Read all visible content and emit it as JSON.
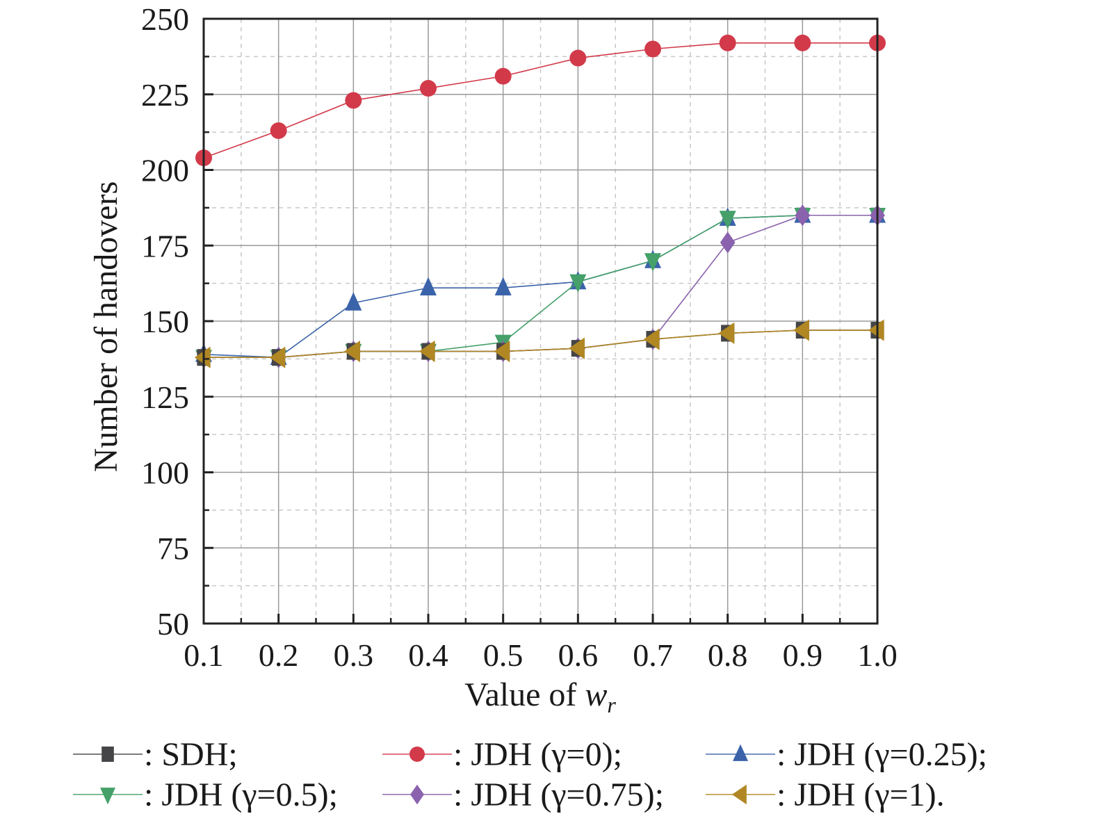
{
  "chart_data": {
    "type": "line",
    "title": "",
    "xlabel": {
      "prefix": "Value of ",
      "var": "w",
      "sub": "r"
    },
    "ylabel": "Number of handovers",
    "xlim": [
      0.1,
      1.0
    ],
    "ylim": [
      50,
      250
    ],
    "x": [
      0.1,
      0.2,
      0.3,
      0.4,
      0.5,
      0.6,
      0.7,
      0.8,
      0.9,
      1.0
    ],
    "xticks": [
      "0.1",
      "0.2",
      "0.3",
      "0.4",
      "0.5",
      "0.6",
      "0.7",
      "0.8",
      "0.9",
      "1.0"
    ],
    "yticks": [
      "50",
      "75",
      "100",
      "125",
      "150",
      "175",
      "200",
      "225",
      "250"
    ],
    "grid": true,
    "legend_position": "bottom",
    "series": [
      {
        "name": ": JDH (γ=0);",
        "color": "#d23a4a",
        "marker": "circle",
        "values": [
          204,
          213,
          223,
          227,
          231,
          237,
          240,
          242,
          242,
          242
        ]
      },
      {
        "name": ": JDH (γ=0.25);",
        "color": "#3b63aa",
        "marker": "triangle-up",
        "values": [
          139,
          138,
          156,
          161,
          161,
          163,
          170,
          184,
          185,
          185
        ]
      },
      {
        "name": ": JDH (γ=0.5);",
        "color": "#45a06a",
        "marker": "triangle-down",
        "values": [
          138,
          138,
          140,
          140,
          143,
          163,
          170,
          184,
          185,
          185
        ]
      },
      {
        "name": ": JDH (γ=0.75);",
        "color": "#8a62ad",
        "marker": "diamond",
        "values": [
          138,
          138,
          140,
          140,
          140,
          141,
          144,
          176,
          185,
          185
        ]
      },
      {
        "name": ": SDH;",
        "color": "#454548",
        "marker": "square",
        "values": [
          138,
          138,
          140,
          140,
          140,
          141,
          144,
          146,
          147,
          147
        ]
      },
      {
        "name": ": JDH (γ=1).",
        "color": "#b08723",
        "marker": "triangle-left",
        "values": [
          138,
          138,
          140,
          140,
          140,
          141,
          144,
          146,
          147,
          147
        ]
      }
    ],
    "legend_order": [
      4,
      0,
      1,
      2,
      3,
      5
    ]
  }
}
